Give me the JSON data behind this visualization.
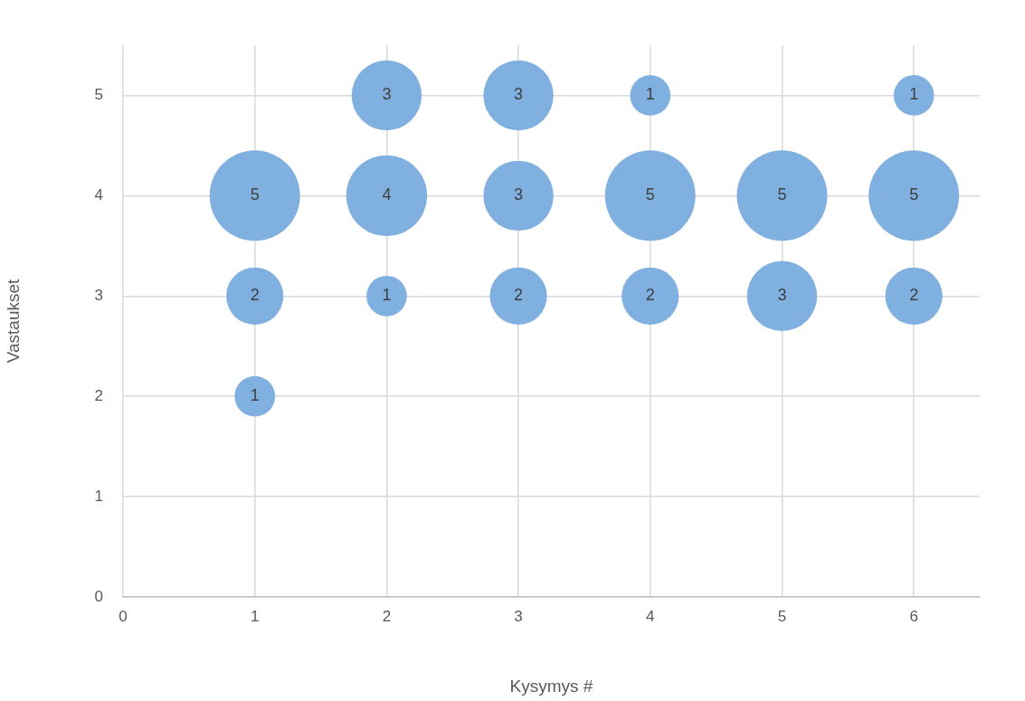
{
  "chart_data": {
    "type": "bubble",
    "xlabel": "Kysymys #",
    "ylabel": "Vastaukset",
    "x": [
      1,
      1,
      1,
      2,
      2,
      2,
      3,
      3,
      3,
      4,
      4,
      4,
      5,
      5,
      6,
      6,
      6
    ],
    "values": [
      4,
      3,
      2,
      5,
      4,
      3,
      5,
      4,
      3,
      5,
      4,
      3,
      4,
      3,
      5,
      4,
      3
    ],
    "sizes": [
      5,
      2,
      1,
      3,
      4,
      1,
      3,
      3,
      2,
      1,
      5,
      2,
      5,
      3,
      1,
      5,
      2
    ],
    "value_labels": [
      "5",
      "2",
      "1",
      "3",
      "4",
      "1",
      "3",
      "3",
      "2",
      "1",
      "5",
      "2",
      "5",
      "3",
      "1",
      "5",
      "2"
    ],
    "color": "#7fb0e0",
    "xlim": [
      0,
      6.5
    ],
    "xticks": [
      0,
      1,
      2,
      3,
      4,
      5,
      6
    ],
    "ylim": [
      0,
      5.5
    ],
    "yticks": [
      0,
      1,
      2,
      3,
      4,
      5
    ],
    "grid": true
  }
}
